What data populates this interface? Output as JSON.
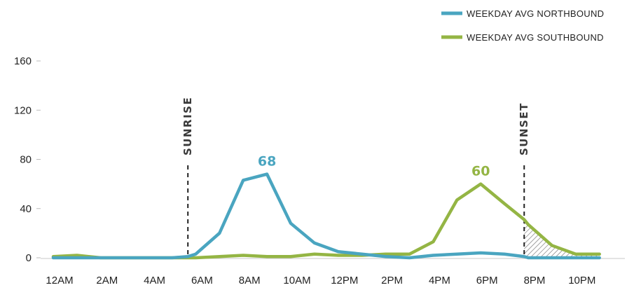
{
  "chart_data": {
    "type": "line",
    "x": [
      "12AM",
      "1AM",
      "2AM",
      "3AM",
      "4AM",
      "5AM",
      "5:40AM",
      "6AM",
      "7AM",
      "8AM",
      "9AM",
      "10AM",
      "11AM",
      "12PM",
      "1PM",
      "2PM",
      "3PM",
      "4PM",
      "5PM",
      "6PM",
      "7PM",
      "7:50PM",
      "8PM",
      "9PM",
      "10PM",
      "11PM"
    ],
    "x_hours": [
      0,
      1,
      2,
      3,
      4,
      5,
      5.67,
      6,
      7,
      8,
      9,
      10,
      11,
      12,
      13,
      14,
      15,
      16,
      17,
      18,
      19,
      19.83,
      20,
      21,
      22,
      23
    ],
    "xticks": [
      "12AM",
      "2AM",
      "4AM",
      "6AM",
      "8AM",
      "10AM",
      "12PM",
      "2PM",
      "4PM",
      "6PM",
      "8PM",
      "10PM"
    ],
    "xtick_hours": [
      0,
      2,
      4,
      6,
      8,
      10,
      12,
      14,
      16,
      18,
      20,
      22
    ],
    "yticks": [
      "0",
      "40",
      "80",
      "120",
      "160"
    ],
    "ylim": [
      0,
      160
    ],
    "series": [
      {
        "name": "WEEKDAY AVG NORTHBOUND",
        "color": "#4aa5c0",
        "values": [
          0,
          0,
          0,
          0,
          0,
          0,
          1,
          3,
          20,
          63,
          68,
          28,
          12,
          5,
          3,
          1,
          0,
          2,
          3,
          4,
          3,
          1,
          0,
          0,
          0,
          0
        ]
      },
      {
        "name": "WEEKDAY AVG SOUTHBOUND",
        "color": "#94b544",
        "values": [
          1,
          2,
          0,
          0,
          0,
          0,
          0,
          0,
          1,
          2,
          1,
          1,
          3,
          2,
          2,
          3,
          3,
          13,
          47,
          60,
          44,
          31,
          27,
          10,
          3,
          3
        ]
      }
    ],
    "markers": [
      {
        "label": "SUNRISE",
        "hour": 5.67
      },
      {
        "label": "SUNSET",
        "hour": 19.83
      }
    ],
    "peak_labels": [
      {
        "text": "68",
        "series": 0,
        "hour": 9,
        "value": 68
      },
      {
        "text": "60",
        "series": 1,
        "hour": 18,
        "value": 60
      }
    ],
    "legend": "top-right",
    "grid": false
  }
}
